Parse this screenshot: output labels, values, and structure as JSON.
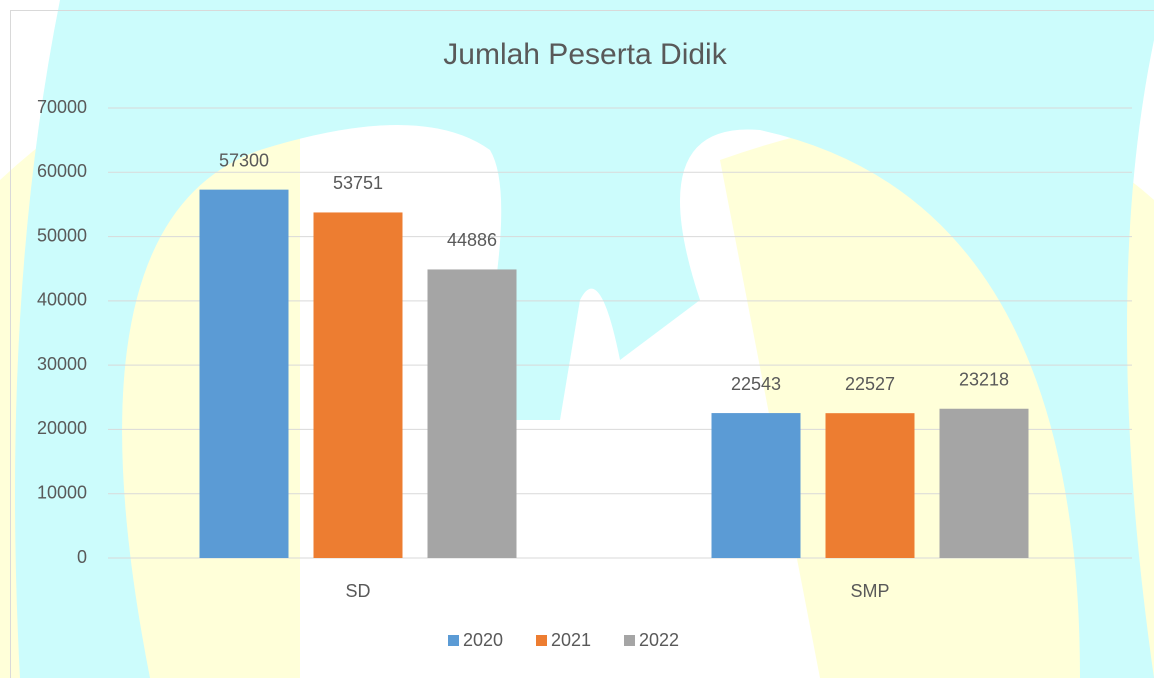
{
  "chart_data": {
    "type": "bar",
    "title": "Jumlah Peserta Didik",
    "categories": [
      "SD",
      "SMP"
    ],
    "series": [
      {
        "name": "2020",
        "color": "#5b9bd5",
        "values": [
          57300,
          22543
        ]
      },
      {
        "name": "2021",
        "color": "#ed7d31",
        "values": [
          53751,
          22527
        ]
      },
      {
        "name": "2022",
        "color": "#a5a5a5",
        "values": [
          44886,
          23218
        ]
      }
    ],
    "ylim": [
      0,
      70000
    ],
    "yticks": [
      0,
      10000,
      20000,
      30000,
      40000,
      50000,
      60000,
      70000
    ],
    "grid": true,
    "legend": "bottom"
  }
}
